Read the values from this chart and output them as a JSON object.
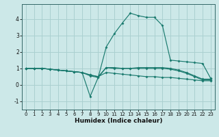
{
  "xlabel": "Humidex (Indice chaleur)",
  "ylabel": "",
  "bg_color": "#cce8e8",
  "grid_color": "#aad0d0",
  "line_color": "#1a7a6e",
  "xlim": [
    -0.5,
    23.5
  ],
  "ylim": [
    -1.5,
    4.9
  ],
  "xticks": [
    0,
    1,
    2,
    3,
    4,
    5,
    6,
    7,
    8,
    9,
    10,
    11,
    12,
    13,
    14,
    15,
    16,
    17,
    18,
    19,
    20,
    21,
    22,
    23
  ],
  "yticks": [
    -1,
    0,
    1,
    2,
    3,
    4
  ],
  "series_spike_x": [
    0,
    1,
    2,
    3,
    4,
    5,
    6,
    7,
    8,
    9,
    10,
    11,
    12,
    13,
    14,
    15,
    16,
    17,
    18,
    19,
    20,
    21,
    22,
    23
  ],
  "series_spike_y": [
    1.0,
    1.0,
    1.0,
    0.95,
    0.9,
    0.85,
    0.8,
    0.75,
    -0.7,
    0.45,
    2.3,
    3.1,
    3.75,
    4.35,
    4.2,
    4.1,
    4.1,
    3.6,
    1.5,
    1.45,
    1.4,
    1.35,
    1.3,
    0.4
  ],
  "series_flat1_x": [
    0,
    1,
    2,
    3,
    4,
    5,
    6,
    7,
    8,
    9,
    10,
    11,
    12,
    13,
    14,
    15,
    16,
    17,
    18,
    19,
    20,
    21,
    22,
    23
  ],
  "series_flat1_y": [
    1.0,
    1.0,
    1.0,
    0.95,
    0.9,
    0.85,
    0.8,
    0.75,
    0.6,
    0.5,
    1.05,
    1.05,
    1.0,
    1.0,
    1.05,
    1.05,
    1.05,
    1.05,
    1.0,
    0.9,
    0.75,
    0.55,
    0.35,
    0.35
  ],
  "series_flat2_x": [
    0,
    1,
    2,
    3,
    4,
    5,
    6,
    7,
    8,
    9,
    10,
    11,
    12,
    13,
    14,
    15,
    16,
    17,
    18,
    19,
    20,
    21,
    22,
    23
  ],
  "series_flat2_y": [
    1.0,
    1.0,
    1.0,
    0.95,
    0.9,
    0.85,
    0.8,
    0.75,
    0.6,
    0.5,
    0.75,
    0.7,
    0.65,
    0.6,
    0.55,
    0.5,
    0.5,
    0.45,
    0.45,
    0.4,
    0.35,
    0.3,
    0.25,
    0.25
  ],
  "series_flat3_x": [
    0,
    1,
    2,
    3,
    4,
    5,
    6,
    7,
    8,
    9,
    10,
    11,
    12,
    13,
    14,
    15,
    16,
    17,
    18,
    19,
    20,
    21,
    22,
    23
  ],
  "series_flat3_y": [
    1.0,
    1.0,
    1.0,
    0.95,
    0.9,
    0.85,
    0.8,
    0.75,
    0.55,
    0.45,
    1.05,
    1.0,
    1.0,
    1.0,
    1.0,
    1.0,
    1.0,
    1.0,
    0.95,
    0.85,
    0.7,
    0.5,
    0.3,
    0.3
  ]
}
